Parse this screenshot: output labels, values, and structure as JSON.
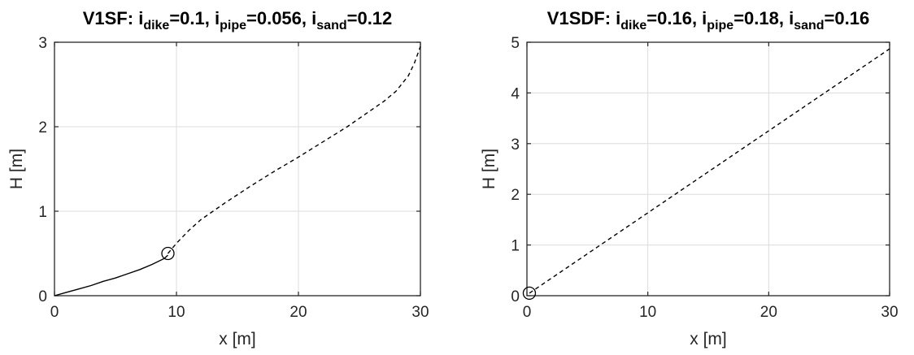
{
  "chart_data": [
    {
      "type": "line",
      "title": {
        "prefix": "V1SF: ",
        "parts": [
          {
            "sym": "i",
            "sub": "dike",
            "val": "=0.1"
          },
          {
            "sym": "i",
            "sub": "pipe",
            "val": "=0.056"
          },
          {
            "sym": "i",
            "sub": "sand",
            "val": "=0.12"
          }
        ]
      },
      "xlabel": "x [m]",
      "ylabel": "H [m]",
      "xlim": [
        0,
        30
      ],
      "ylim": [
        0,
        3
      ],
      "xticks": [
        0,
        10,
        20,
        30
      ],
      "yticks": [
        0,
        1,
        2,
        3
      ],
      "grid": true,
      "series": [
        {
          "style": "solid",
          "color": "#000000",
          "x": [
            0,
            1,
            2,
            3,
            4,
            5,
            6,
            7,
            8,
            9,
            9.3
          ],
          "y": [
            0,
            0.04,
            0.08,
            0.12,
            0.17,
            0.21,
            0.26,
            0.31,
            0.37,
            0.44,
            0.48
          ]
        },
        {
          "style": "dashed",
          "color": "#000000",
          "x": [
            9.3,
            10,
            11,
            12,
            14,
            16,
            18,
            20,
            22,
            24,
            26,
            27,
            28,
            29,
            29.5,
            30
          ],
          "y": [
            0.5,
            0.62,
            0.77,
            0.9,
            1.1,
            1.29,
            1.47,
            1.64,
            1.82,
            2.0,
            2.2,
            2.3,
            2.42,
            2.6,
            2.75,
            2.95
          ]
        }
      ],
      "marker": {
        "shape": "circle-open",
        "x": 9.3,
        "y": 0.5
      }
    },
    {
      "type": "line",
      "title": {
        "prefix": "V1SDF: ",
        "parts": [
          {
            "sym": "i",
            "sub": "dike",
            "val": "=0.16"
          },
          {
            "sym": "i",
            "sub": "pipe",
            "val": "=0.18"
          },
          {
            "sym": "i",
            "sub": "sand",
            "val": "=0.16"
          }
        ]
      },
      "xlabel": "x [m]",
      "ylabel": "H [m]",
      "xlim": [
        0,
        30
      ],
      "ylim": [
        0,
        5
      ],
      "xticks": [
        0,
        10,
        20,
        30
      ],
      "yticks": [
        0,
        1,
        2,
        3,
        4,
        5
      ],
      "grid": true,
      "series": [
        {
          "style": "dashed",
          "color": "#000000",
          "x": [
            0.2,
            30
          ],
          "y": [
            0.05,
            4.87
          ]
        }
      ],
      "marker": {
        "shape": "circle-open",
        "x": 0.2,
        "y": 0.05
      }
    }
  ]
}
